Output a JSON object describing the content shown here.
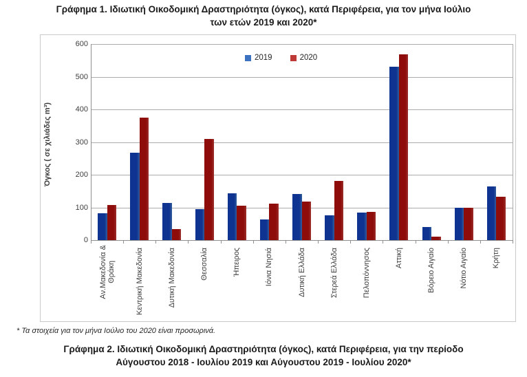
{
  "page": {
    "title1_line1": "Γράφημα 1. Ιδιωτική Οικοδομική Δραστηριότητα (όγκος), κατά Περιφέρεια, για τον μήνα  Ιούλιο",
    "title1_line2": "των ετών 2019 και 2020*",
    "footnote": "* Τα στοιχεία για τον μήνα Ιούλιο του 2020 είναι προσωρινά.",
    "title2_line1": "Γράφημα 2. Ιδιωτική Οικοδομική Δραστηριότητα (όγκος), κατά Περιφέρεια, για την περίοδο",
    "title2_line2": "Αύγουστου 2018 - Ιουλίου 2019 και Αύγουστου 2019 - Ιουλίου 2020*"
  },
  "chart_data": {
    "type": "bar",
    "title": "Ιδιωτική Οικοδομική Δραστηριότητα (όγκος), κατά Περιφέρεια, για τον μήνα Ιούλιο των ετών 2019 και 2020*",
    "xlabel": "",
    "ylabel": "Όγκος ( σε χιλιάδες  m³)",
    "ylim": [
      0,
      600
    ],
    "ytick_step": 100,
    "grid": true,
    "legend_position": "top-center",
    "categories": [
      "Αν.Μακεδονία &\nΘράκη",
      "Κεντρική Μακεδονία",
      "Δυτική Μακεδονία",
      "Θεσσαλία",
      "Ήπειρος",
      "Ιόνια Νησιά",
      "Δυτική Ελλάδα",
      "Στερεά Ελλάδα",
      "Πελοπόννησος",
      "Αττική",
      "Βόρειο Αιγαίο",
      "Νότιο Αιγαίο",
      "Κρήτη"
    ],
    "series": [
      {
        "name": "2019",
        "color": "#3C72C0",
        "values": [
          83,
          267,
          114,
          94,
          143,
          64,
          141,
          75,
          84,
          530,
          40,
          100,
          165
        ]
      },
      {
        "name": "2020",
        "color": "#BE3A36",
        "values": [
          107,
          375,
          33,
          310,
          106,
          112,
          117,
          182,
          87,
          568,
          10,
          100,
          133
        ]
      }
    ]
  }
}
